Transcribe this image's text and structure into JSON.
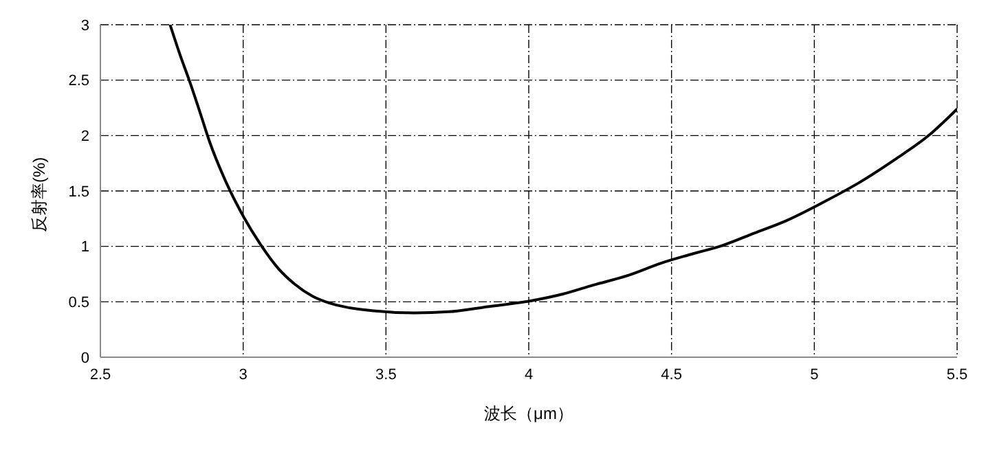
{
  "chart_data": {
    "type": "line",
    "xlabel": "波长（μm）",
    "ylabel": "反射率(%)",
    "x": [
      2.744,
      2.78,
      2.811,
      2.85,
      2.883,
      2.94,
      3.003,
      3.06,
      3.123,
      3.18,
      3.243,
      3.3,
      3.363,
      3.45,
      3.6,
      3.72,
      3.84,
      4.01,
      4.12,
      4.225,
      4.35,
      4.465,
      4.57,
      4.68,
      4.79,
      4.9,
      5.04,
      5.16,
      5.28,
      5.4,
      5.5
    ],
    "series": [
      {
        "color": "#000000",
        "values": [
          3,
          2.72,
          2.5,
          2.2,
          1.94,
          1.58,
          1.26,
          1.02,
          0.8,
          0.66,
          0.55,
          0.49,
          0.45,
          0.42,
          0.4,
          0.41,
          0.45,
          0.51,
          0.57,
          0.65,
          0.74,
          0.85,
          0.93,
          1.01,
          1.12,
          1.23,
          1.41,
          1.58,
          1.78,
          2.0,
          2.24
        ]
      }
    ],
    "xlim": [
      2.5,
      5.5
    ],
    "xticks": [
      2.5,
      3,
      3.5,
      4,
      4.5,
      5,
      5.5
    ],
    "ylim": [
      0,
      3
    ],
    "yticks": [
      0,
      0.5,
      1,
      1.5,
      2,
      2.5,
      3
    ],
    "grid": true,
    "marker": "none",
    "line_style": "solid"
  }
}
